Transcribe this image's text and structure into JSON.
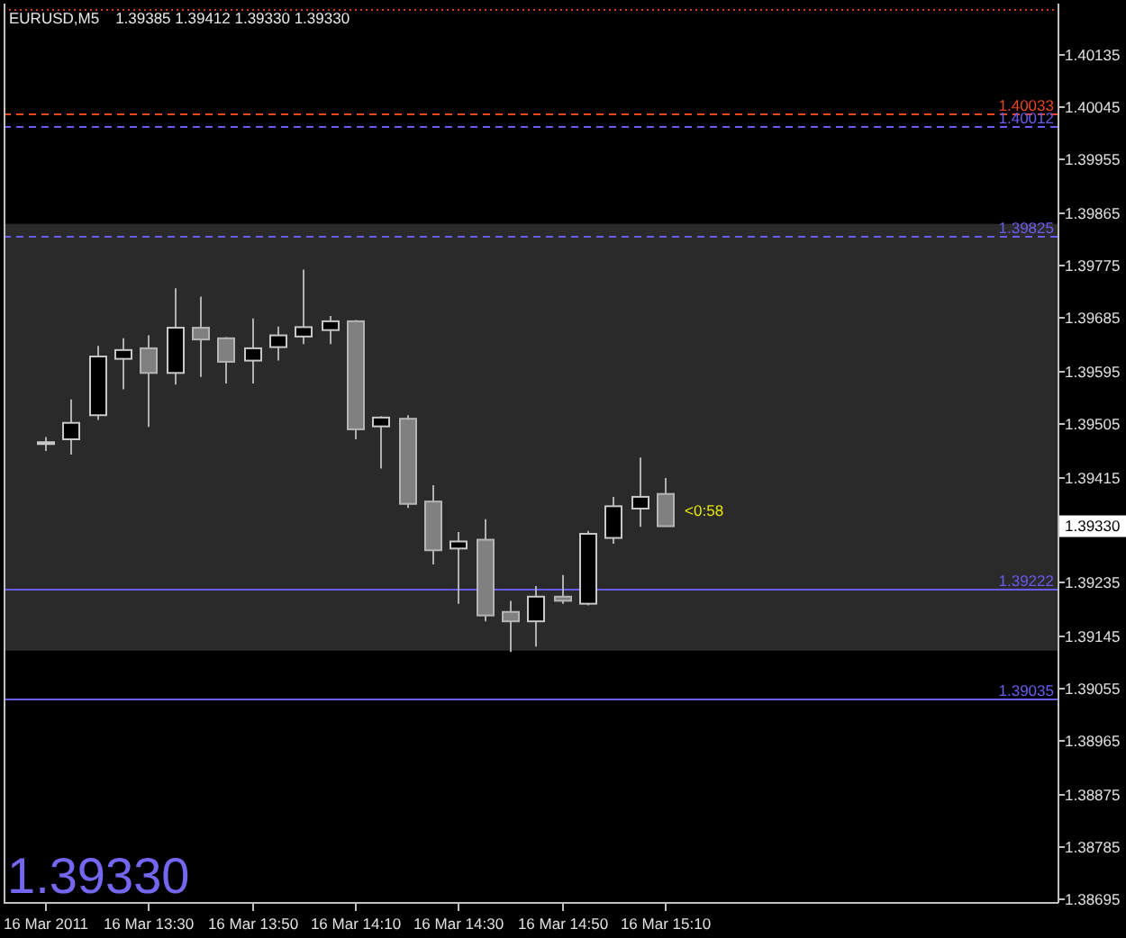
{
  "chart_data": {
    "type": "candlestick",
    "title": "EURUSD,M5",
    "subtitle": "1.39385 1.39412 1.39330 1.39330",
    "x": [
      "2011-03-16T13:10",
      "2011-03-16T13:15",
      "2011-03-16T13:20",
      "2011-03-16T13:25",
      "2011-03-16T13:30",
      "2011-03-16T13:35",
      "2011-03-16T13:40",
      "2011-03-16T13:45",
      "2011-03-16T13:50",
      "2011-03-16T13:55",
      "2011-03-16T14:00",
      "2011-03-16T14:05",
      "2011-03-16T14:10",
      "2011-03-16T14:15",
      "2011-03-16T14:20",
      "2011-03-16T14:25",
      "2011-03-16T14:30",
      "2011-03-16T14:35",
      "2011-03-16T14:40",
      "2011-03-16T14:45",
      "2011-03-16T14:50",
      "2011-03-16T14:55",
      "2011-03-16T15:00",
      "2011-03-16T15:05",
      "2011-03-16T15:10"
    ],
    "ohlc": [
      [
        1.39473,
        1.39482,
        1.39458,
        1.39473
      ],
      [
        1.39478,
        1.39546,
        1.39452,
        1.39506
      ],
      [
        1.39519,
        1.39637,
        1.39511,
        1.39619
      ],
      [
        1.39615,
        1.3965,
        1.39563,
        1.3963
      ],
      [
        1.39633,
        1.39655,
        1.39499,
        1.39591
      ],
      [
        1.39591,
        1.39735,
        1.39571,
        1.39668
      ],
      [
        1.39668,
        1.39721,
        1.39584,
        1.39648
      ],
      [
        1.3965,
        1.39652,
        1.39573,
        1.3961
      ],
      [
        1.39612,
        1.39684,
        1.39573,
        1.39633
      ],
      [
        1.39635,
        1.3967,
        1.39612,
        1.39655
      ],
      [
        1.39653,
        1.39767,
        1.3964,
        1.39669
      ],
      [
        1.39664,
        1.39688,
        1.3964,
        1.39679
      ],
      [
        1.39679,
        1.39681,
        1.39478,
        1.39495
      ],
      [
        1.395,
        1.39517,
        1.39428,
        1.39515
      ],
      [
        1.39513,
        1.39519,
        1.39361,
        1.39368
      ],
      [
        1.39372,
        1.394,
        1.39265,
        1.39289
      ],
      [
        1.39292,
        1.3932,
        1.39198,
        1.39304
      ],
      [
        1.39307,
        1.39342,
        1.39168,
        1.39178
      ],
      [
        1.39184,
        1.39203,
        1.39116,
        1.39168
      ],
      [
        1.39168,
        1.39228,
        1.39125,
        1.3921
      ],
      [
        1.3921,
        1.39247,
        1.39198,
        1.39203
      ],
      [
        1.39198,
        1.39322,
        1.39195,
        1.39317
      ],
      [
        1.3931,
        1.3938,
        1.393,
        1.39364
      ],
      [
        1.3936,
        1.39447,
        1.39329,
        1.3938
      ],
      [
        1.39385,
        1.39412,
        1.3933,
        1.3933
      ]
    ],
    "xlim": [
      "2011-03-16T13:02",
      "2011-03-16T16:26"
    ],
    "xticks": [
      {
        "value": "2011-03-16T13:10",
        "label": "16 Mar 2011"
      },
      {
        "value": "2011-03-16T13:30",
        "label": "16 Mar 13:30"
      },
      {
        "value": "2011-03-16T13:50",
        "label": "16 Mar 13:50"
      },
      {
        "value": "2011-03-16T14:10",
        "label": "16 Mar 14:10"
      },
      {
        "value": "2011-03-16T14:30",
        "label": "16 Mar 14:30"
      },
      {
        "value": "2011-03-16T14:50",
        "label": "16 Mar 14:50"
      },
      {
        "value": "2011-03-16T15:10",
        "label": "16 Mar 15:10"
      }
    ],
    "ylim": [
      1.3869,
      1.4022
    ],
    "yticks": [
      1.40135,
      1.40045,
      1.39955,
      1.39865,
      1.39775,
      1.39685,
      1.39595,
      1.39505,
      1.39415,
      1.39235,
      1.39145,
      1.39055,
      1.38965,
      1.38875,
      1.38785,
      1.38695
    ],
    "ref_lines": [
      {
        "axis": "y",
        "value": 1.40212,
        "color": "#d23c1c",
        "line_style": "dotted"
      },
      {
        "axis": "y",
        "value": 1.40033,
        "label": "1.40033",
        "color": "#e8461e",
        "line_style": "dashed"
      },
      {
        "axis": "y",
        "value": 1.40012,
        "label": "1.40012",
        "color": "#6a5cf0",
        "line_style": "dashed"
      },
      {
        "axis": "y",
        "value": 1.39825,
        "label": "1.39825",
        "color": "#6a5cf0",
        "line_style": "dashed"
      },
      {
        "axis": "y",
        "value": 1.39222,
        "label": "1.39222",
        "color": "#6a5cf0",
        "line_style": "solid"
      },
      {
        "axis": "y",
        "value": 1.39035,
        "label": "1.39035",
        "color": "#6a5cf0",
        "line_style": "solid"
      }
    ],
    "bands": [
      {
        "axis": "y",
        "from": 1.39118,
        "to": 1.39845,
        "color": "#2a2a2a"
      }
    ],
    "annotations": [
      "<0:58",
      {
        "text": "1.39330",
        "y": 1.3933
      },
      "1.39330"
    ]
  }
}
